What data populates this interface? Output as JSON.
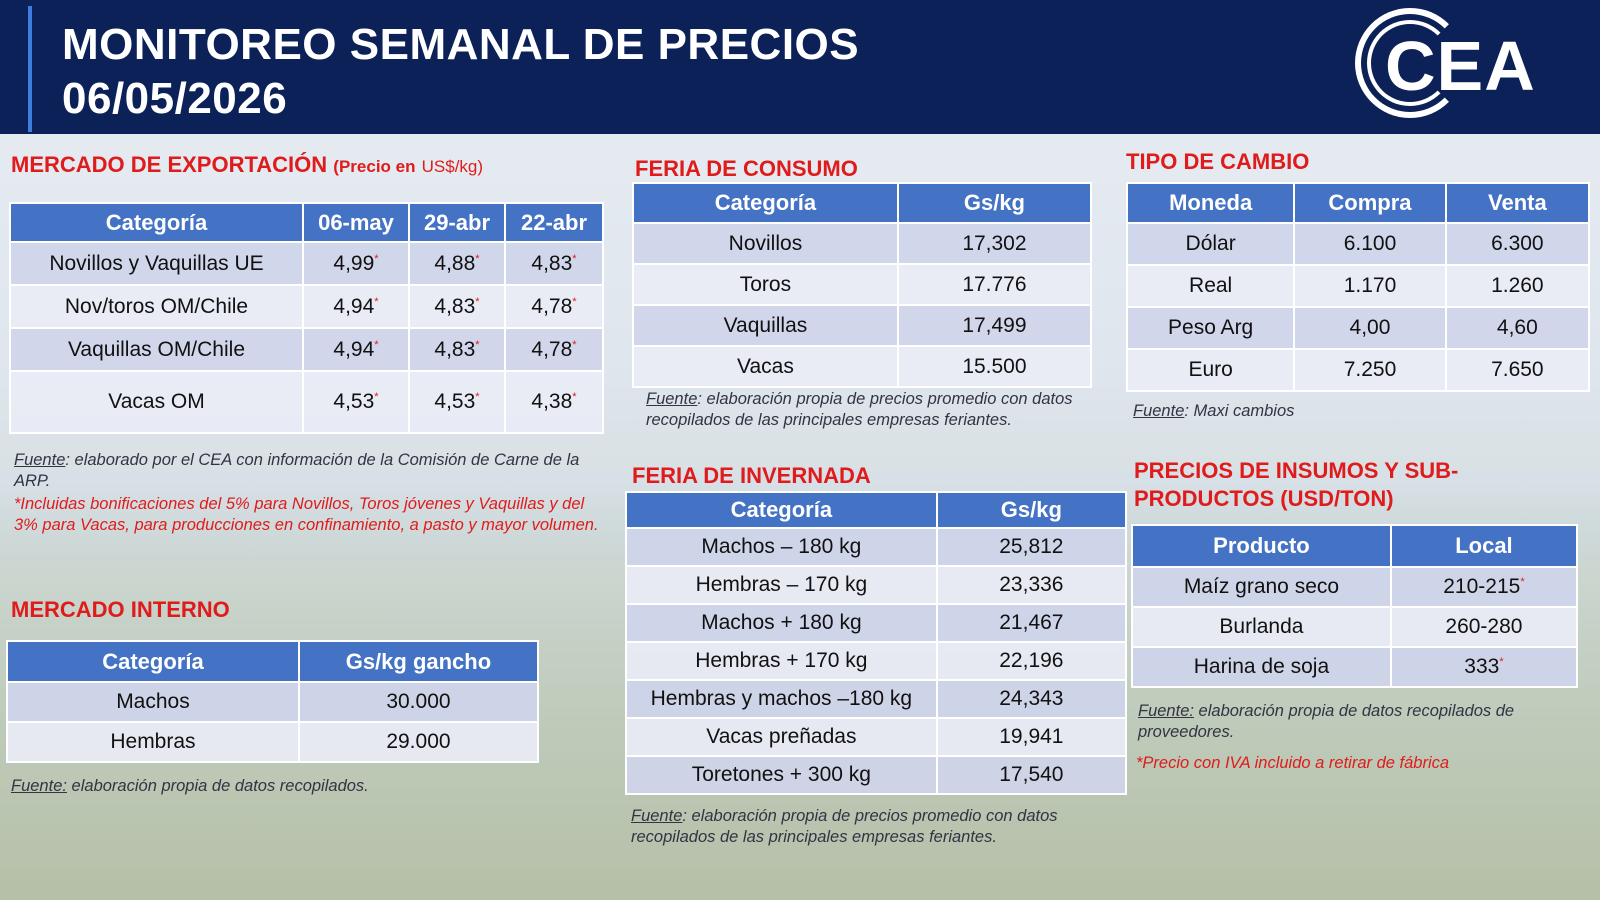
{
  "header": {
    "title_line1": "MONITOREO SEMANAL DE PRECIOS",
    "title_line2": "06/05/2026",
    "logo_text": "CEA"
  },
  "export_market": {
    "title": "MERCADO DE EXPORTACIÓN",
    "subtitle_bold": "(Precio en",
    "subtitle_light": "US$/kg)",
    "headers": [
      "Categoría",
      "06-may",
      "29-abr",
      "22-abr"
    ],
    "rows": [
      [
        "Novillos y Vaquillas UE",
        "4,99",
        "4,88",
        "4,83"
      ],
      [
        "Nov/toros OM/Chile",
        "4,94",
        "4,83",
        "4,78"
      ],
      [
        "Vaquillas OM/Chile",
        "4,94",
        "4,83",
        "4,78"
      ],
      [
        "Vacas OM",
        "4,53",
        "4,53",
        "4,38"
      ]
    ],
    "asterisk": "*",
    "source_label": "Fuente",
    "source_text": ": elaborado por el CEA con información de la Comisión de Carne de la ARP.",
    "footnote": "*Incluidas bonificaciones del 5% para Novillos, Toros jóvenes y Vaquillas y del 3% para Vacas, para producciones en confinamiento, a pasto y mayor volumen."
  },
  "internal_market": {
    "title": "MERCADO INTERNO",
    "headers": [
      "Categoría",
      "Gs/kg gancho"
    ],
    "rows": [
      [
        "Machos",
        "30.000"
      ],
      [
        "Hembras",
        "29.000"
      ]
    ],
    "source_label": "Fuente:",
    "source_text": " elaboración propia de datos recopilados."
  },
  "consumption_fair": {
    "title": "FERIA DE CONSUMO",
    "headers": [
      "Categoría",
      "Gs/kg"
    ],
    "rows": [
      [
        "Novillos",
        "17,302"
      ],
      [
        "Toros",
        "17.776"
      ],
      [
        "Vaquillas",
        "17,499"
      ],
      [
        "Vacas",
        "15.500"
      ]
    ],
    "source_label": "Fuente",
    "source_text": ": elaboración propia de precios promedio con datos recopilados de las principales empresas feriantes."
  },
  "wintering_fair": {
    "title": "FERIA DE INVERNADA",
    "headers": [
      "Categoría",
      "Gs/kg"
    ],
    "rows": [
      [
        "Machos – 180 kg",
        "25,812"
      ],
      [
        "Hembras – 170 kg",
        "23,336"
      ],
      [
        "Machos + 180 kg",
        "21,467"
      ],
      [
        "Hembras + 170 kg",
        "22,196"
      ],
      [
        "Hembras y machos –180 kg",
        "24,343"
      ],
      [
        "Vacas preñadas",
        "19,941"
      ],
      [
        "Toretones + 300 kg",
        "17,540"
      ]
    ],
    "source_label": "Fuente",
    "source_text": ": elaboración propia de precios promedio con datos recopilados de las principales empresas feriantes."
  },
  "exchange_rate": {
    "title": "TIPO DE CAMBIO",
    "headers": [
      "Moneda",
      "Compra",
      "Venta"
    ],
    "rows": [
      [
        "Dólar",
        "6.100",
        "6.300"
      ],
      [
        "Real",
        "1.170",
        "1.260"
      ],
      [
        "Peso Arg",
        "4,00",
        "4,60"
      ],
      [
        "Euro",
        "7.250",
        "7.650"
      ]
    ],
    "source_label": "Fuente",
    "source_text": ": Maxi cambios"
  },
  "inputs": {
    "title_line1": "PRECIOS DE INSUMOS Y SUB-",
    "title_line2": "PRODUCTOS (USD/TON)",
    "headers": [
      "Producto",
      "Local"
    ],
    "rows": [
      [
        "Maíz grano seco",
        "210-215"
      ],
      [
        "Burlanda",
        "260-280"
      ],
      [
        "Harina de soja",
        "333"
      ]
    ],
    "source_label": "Fuente:",
    "source_text": " elaboración propia de datos recopilados de proveedores.",
    "footnote": "*Precio con IVA incluido a retirar de fábrica"
  },
  "colors": {
    "header_bg": "#0b2157",
    "table_header": "#4472c4",
    "section_title": "#e01b1b"
  }
}
